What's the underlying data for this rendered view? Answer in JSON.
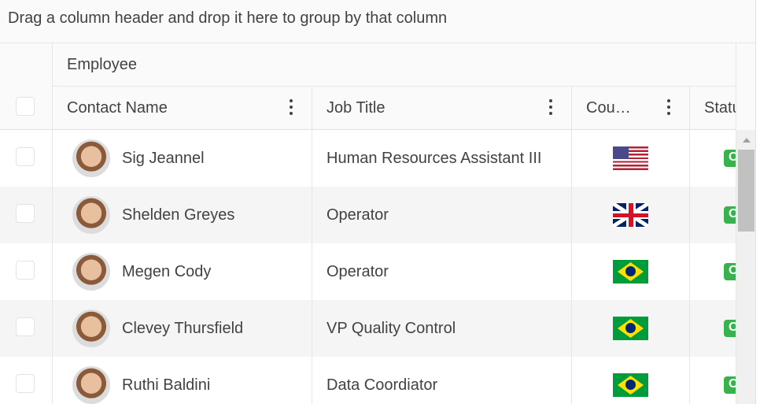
{
  "group_panel": {
    "hint": "Drag a column header and drop it here to group by that column"
  },
  "header": {
    "group_label": "Employee",
    "columns": [
      {
        "label": "Contact Name"
      },
      {
        "label": "Job Title"
      },
      {
        "label": "Cou…"
      },
      {
        "label": "Statu"
      }
    ]
  },
  "rows": [
    {
      "name": "Sig Jeannel",
      "job": "Human Resources Assistant III",
      "country_flag": "us-flag",
      "status": "O"
    },
    {
      "name": "Shelden Greyes",
      "job": "Operator",
      "country_flag": "uk-flag",
      "status": "O"
    },
    {
      "name": "Megen Cody",
      "job": "Operator",
      "country_flag": "brazil-flag",
      "status": "O"
    },
    {
      "name": "Clevey Thursfield",
      "job": "VP Quality Control",
      "country_flag": "brazil-flag",
      "status": "O"
    },
    {
      "name": "Ruthi Baldini",
      "job": "Data Coordiator",
      "country_flag": "brazil-flag",
      "status": "O"
    }
  ],
  "colors": {
    "status_badge": "#37b24d",
    "alt_row": "#f5f5f5"
  }
}
